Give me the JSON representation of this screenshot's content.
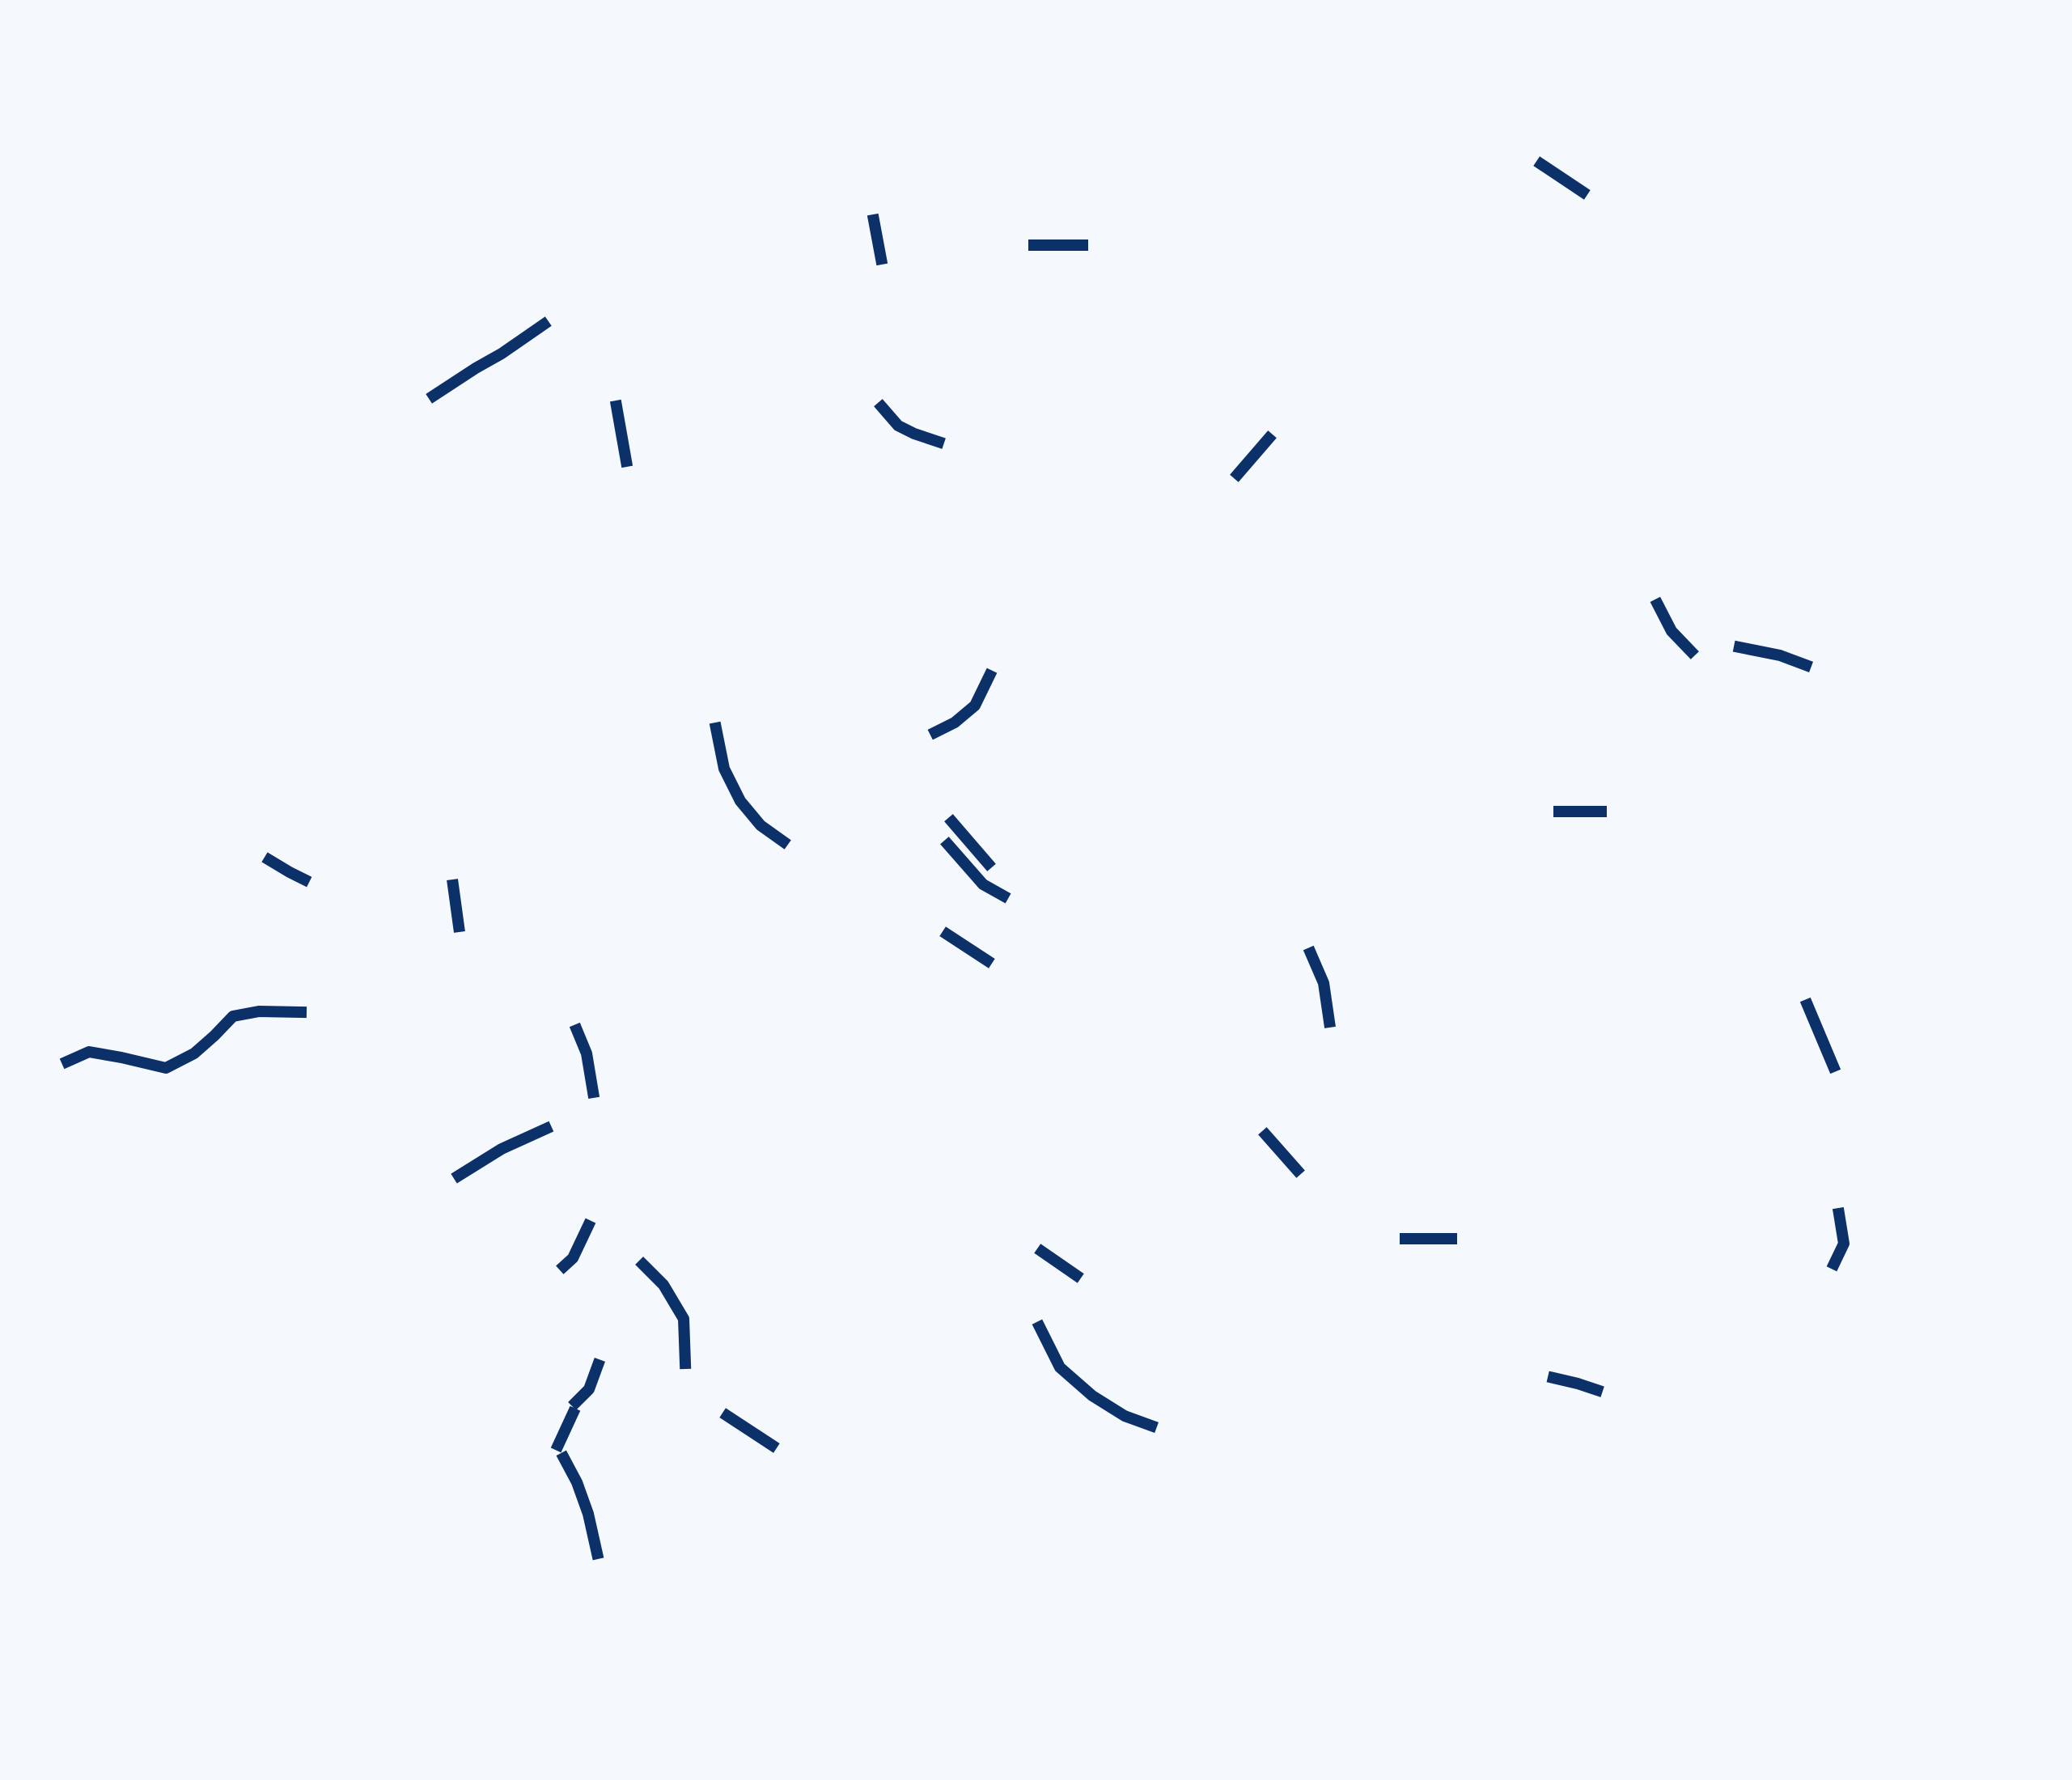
{
  "canvas": {
    "background_color": "#f5f9fe",
    "stroke_color": "#0c3168"
  }
}
